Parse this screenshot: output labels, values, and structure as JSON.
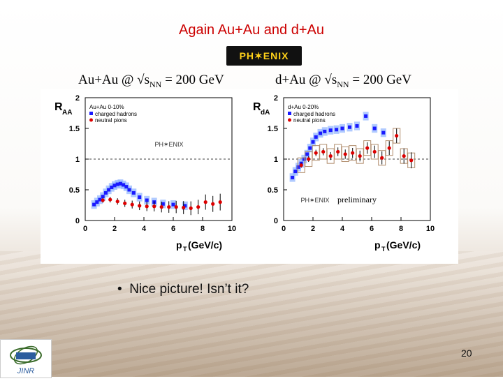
{
  "slide": {
    "title": "Again Au+Au and d+Au",
    "logo_text": "PH✶ENIX",
    "caption_left_pre": "Au+Au @ √s",
    "caption_left_sub": "NN",
    "caption_left_post": " = 200 GeV",
    "caption_right_pre": "d+Au @ √s",
    "caption_right_sub": "NN",
    "caption_right_post": " = 200 GeV",
    "bullet": "Nice picture! Isn’t it?",
    "page_number": "20",
    "footer_logo_text": "JINR"
  },
  "colors": {
    "title": "#cc0000",
    "charged": "#1a1aff",
    "band": "#8fb4ff",
    "pion": "#dd0000",
    "syst_box": "#b08c6c"
  },
  "chart_data": [
    {
      "type": "scatter",
      "ylabel_main": "R",
      "ylabel_sub": "AA",
      "xlabel_main": "p",
      "xlabel_sub": "T",
      "xlabel_rest": " (GeV/c)",
      "xlim": [
        0,
        10
      ],
      "ylim": [
        0,
        2
      ],
      "xticks": [
        "0",
        "2",
        "4",
        "6",
        "8",
        "10"
      ],
      "yticks": [
        "0",
        "0.5",
        "1",
        "1.5",
        "2"
      ],
      "legend": [
        "Au+Au 0-10%",
        "charged hadrons",
        "neutral pions"
      ],
      "watermark": "PH✶ENIX",
      "reference_line": 1,
      "series": [
        {
          "name": "charged hadrons",
          "x": [
            0.6,
            0.8,
            1.0,
            1.2,
            1.4,
            1.6,
            1.8,
            2.0,
            2.2,
            2.4,
            2.6,
            2.8,
            3.0,
            3.3,
            3.7,
            4.2,
            4.7,
            5.3,
            6.0,
            6.8
          ],
          "y": [
            0.26,
            0.3,
            0.34,
            0.39,
            0.45,
            0.5,
            0.54,
            0.57,
            0.59,
            0.6,
            0.58,
            0.55,
            0.5,
            0.45,
            0.38,
            0.33,
            0.3,
            0.27,
            0.26,
            0.24
          ]
        },
        {
          "name": "neutral pions",
          "x": [
            1.2,
            1.7,
            2.2,
            2.7,
            3.2,
            3.7,
            4.2,
            4.7,
            5.2,
            5.7,
            6.2,
            6.7,
            7.2,
            7.7,
            8.2,
            8.7,
            9.2
          ],
          "y": [
            0.33,
            0.34,
            0.31,
            0.28,
            0.26,
            0.24,
            0.23,
            0.23,
            0.22,
            0.22,
            0.22,
            0.21,
            0.2,
            0.22,
            0.3,
            0.27,
            0.3
          ]
        }
      ]
    },
    {
      "type": "scatter",
      "ylabel_main": "R",
      "ylabel_sub": "dA",
      "xlabel_main": "p",
      "xlabel_sub": "T",
      "xlabel_rest": " (GeV/c)",
      "xlim": [
        0,
        10
      ],
      "ylim": [
        0,
        2
      ],
      "xticks": [
        "0",
        "2",
        "4",
        "6",
        "8",
        "10"
      ],
      "yticks": [
        "0",
        "0.5",
        "1",
        "1.5",
        "2"
      ],
      "legend": [
        "d+Au 0-20%",
        "charged hadrons",
        "neutral pions"
      ],
      "watermark": "PH✶ENIX",
      "annotation": "preliminary",
      "reference_line": 1,
      "series": [
        {
          "name": "charged hadrons",
          "x": [
            0.6,
            0.8,
            1.0,
            1.2,
            1.4,
            1.6,
            1.8,
            2.0,
            2.2,
            2.5,
            2.8,
            3.2,
            3.6,
            4.0,
            4.5,
            5.0,
            5.6,
            6.2,
            6.8
          ],
          "y": [
            0.7,
            0.8,
            0.87,
            0.93,
            1.0,
            1.08,
            1.18,
            1.28,
            1.36,
            1.42,
            1.45,
            1.47,
            1.48,
            1.5,
            1.52,
            1.54,
            1.7,
            1.5,
            1.43
          ]
        },
        {
          "name": "neutral pions",
          "x": [
            1.2,
            1.7,
            2.2,
            2.7,
            3.2,
            3.7,
            4.2,
            4.7,
            5.2,
            5.7,
            6.2,
            6.7,
            7.2,
            7.7,
            8.2,
            8.7
          ],
          "y": [
            0.9,
            1.0,
            1.1,
            1.12,
            1.05,
            1.12,
            1.08,
            1.1,
            1.05,
            1.18,
            1.12,
            1.02,
            1.18,
            1.38,
            1.05,
            0.98
          ]
        }
      ]
    }
  ]
}
